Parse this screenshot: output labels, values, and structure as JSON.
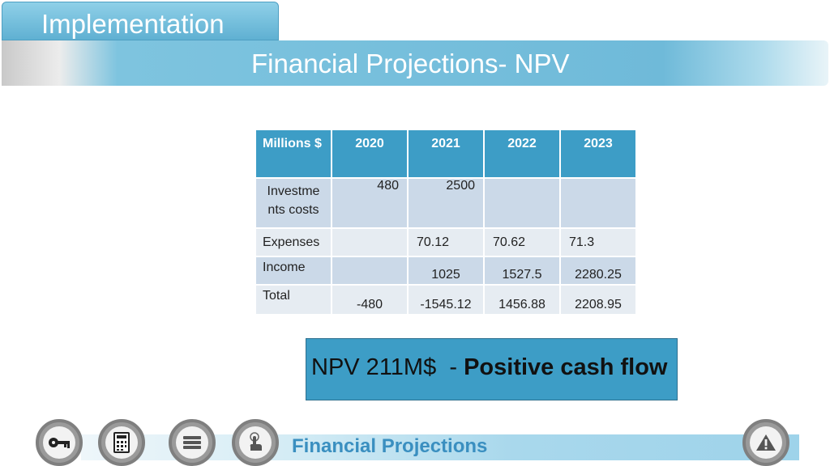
{
  "section": {
    "label": "Implementation"
  },
  "slide": {
    "title": "Financial Projections- NPV"
  },
  "table": {
    "headers": [
      "Millions $",
      "2020",
      "2021",
      "2022",
      "2023"
    ],
    "rows": [
      {
        "label": "Investme nts costs",
        "label_line1": "Investme",
        "label_line2": "nts costs",
        "values": [
          "480",
          "2500",
          "",
          ""
        ]
      },
      {
        "label": "Expenses",
        "values": [
          "",
          "70.12",
          "70.62",
          "71.3"
        ]
      },
      {
        "label": "Income",
        "values": [
          "",
          "1025",
          "1527.5",
          "2280.25"
        ]
      },
      {
        "label": "Total",
        "values": [
          "-480",
          "-1545.12",
          "1456.88",
          "2208.95"
        ]
      }
    ]
  },
  "npv": {
    "value": "NPV 211M$",
    "separator": "-",
    "note": "Positive cash flow"
  },
  "footer": {
    "label": "Financial Projections",
    "icons": [
      "key-icon",
      "calculator-icon",
      "menu-icon",
      "pointer-hand-icon",
      "warning-icon"
    ]
  },
  "colors": {
    "accent": "#3d9dc6",
    "row_light": "#e6ecf2",
    "row_dark": "#cbd9e8"
  }
}
